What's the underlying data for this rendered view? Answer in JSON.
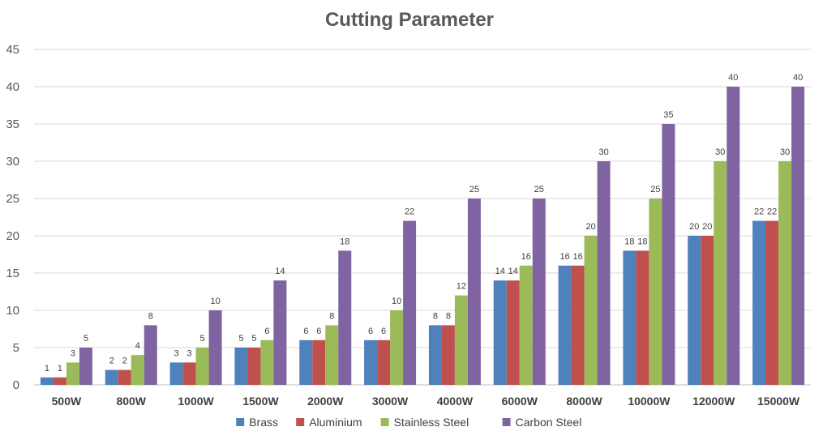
{
  "chart_data": {
    "type": "bar",
    "title": "Cutting Parameter",
    "xlabel": "",
    "ylabel": "",
    "ylim": [
      0,
      45
    ],
    "yticks": [
      0,
      5,
      10,
      15,
      20,
      25,
      30,
      35,
      40,
      45
    ],
    "grid": true,
    "legend_position": "bottom",
    "categories": [
      "500W",
      "800W",
      "1000W",
      "1500W",
      "2000W",
      "3000W",
      "4000W",
      "6000W",
      "8000W",
      "10000W",
      "12000W",
      "15000W"
    ],
    "series": [
      {
        "name": "Brass",
        "color": "#4f81bd",
        "values": [
          1,
          2,
          3,
          5,
          6,
          6,
          8,
          14,
          16,
          18,
          20,
          22
        ]
      },
      {
        "name": "Aluminium",
        "color": "#c0504d",
        "values": [
          1,
          2,
          3,
          5,
          6,
          6,
          8,
          14,
          16,
          18,
          20,
          22
        ]
      },
      {
        "name": "Stainless Steel",
        "color": "#9bbb59",
        "values": [
          3,
          4,
          5,
          6,
          8,
          10,
          12,
          16,
          20,
          25,
          30,
          30
        ]
      },
      {
        "name": "Carbon Steel",
        "color": "#8064a2",
        "values": [
          5,
          8,
          10,
          14,
          18,
          22,
          25,
          25,
          30,
          35,
          40,
          40
        ]
      }
    ]
  }
}
